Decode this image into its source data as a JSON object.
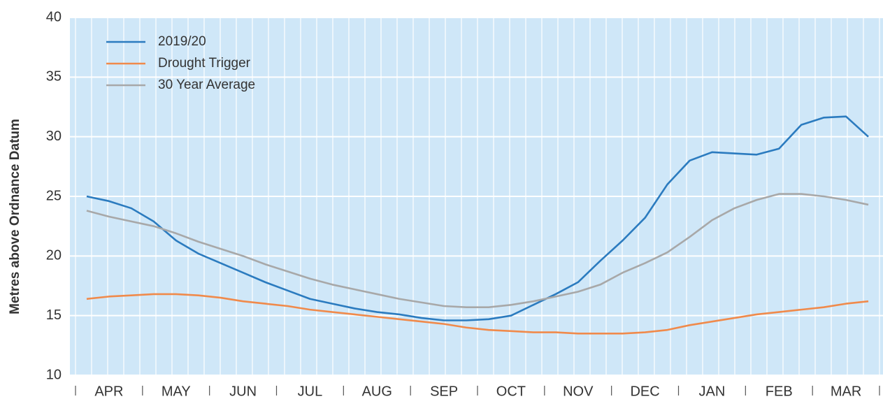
{
  "chart_data": {
    "type": "line",
    "ylabel": "Metres above Ordnance Datum",
    "categories": [
      null,
      "APR",
      null,
      null,
      "MAY",
      null,
      null,
      "JUN",
      null,
      null,
      "JUL",
      null,
      null,
      "AUG",
      null,
      null,
      "SEP",
      null,
      null,
      "OCT",
      null,
      null,
      "NOV",
      null,
      null,
      "DEC",
      null,
      null,
      "JAN",
      null,
      null,
      "FEB",
      null,
      null,
      "MAR",
      null
    ],
    "series": [
      {
        "name": "2019/20",
        "color": "#2b7bbf",
        "values": [
          25.0,
          24.6,
          24.0,
          22.9,
          21.3,
          20.2,
          19.4,
          18.6,
          17.8,
          17.1,
          16.4,
          16.0,
          15.6,
          15.3,
          15.1,
          14.8,
          14.6,
          14.6,
          14.7,
          15.0,
          15.9,
          16.8,
          17.8,
          19.6,
          21.3,
          23.2,
          26.0,
          28.0,
          28.7,
          28.6,
          28.5,
          29.0,
          31.0,
          31.6,
          31.7,
          30.0
        ]
      },
      {
        "name": "Drought Trigger",
        "color": "#f08a4b",
        "values": [
          16.4,
          16.6,
          16.7,
          16.8,
          16.8,
          16.7,
          16.5,
          16.2,
          16.0,
          15.8,
          15.5,
          15.3,
          15.1,
          14.9,
          14.7,
          14.5,
          14.3,
          14.0,
          13.8,
          13.7,
          13.6,
          13.6,
          13.5,
          13.5,
          13.5,
          13.6,
          13.8,
          14.2,
          14.5,
          14.8,
          15.1,
          15.3,
          15.5,
          15.7,
          16.0,
          16.2
        ]
      },
      {
        "name": "30 Year Average",
        "color": "#a8a8a8",
        "values": [
          23.8,
          23.3,
          22.9,
          22.5,
          21.9,
          21.2,
          20.6,
          20.0,
          19.3,
          18.7,
          18.1,
          17.6,
          17.2,
          16.8,
          16.4,
          16.1,
          15.8,
          15.7,
          15.7,
          15.9,
          16.2,
          16.6,
          17.0,
          17.6,
          18.6,
          19.4,
          20.3,
          21.6,
          23.0,
          24.0,
          24.7,
          25.2,
          25.2,
          25.0,
          24.7,
          24.3
        ]
      }
    ],
    "ylim": [
      10,
      40
    ],
    "yticks": [
      10,
      15,
      20,
      25,
      30,
      35,
      40
    ],
    "grid": true,
    "legend": "upper left"
  }
}
